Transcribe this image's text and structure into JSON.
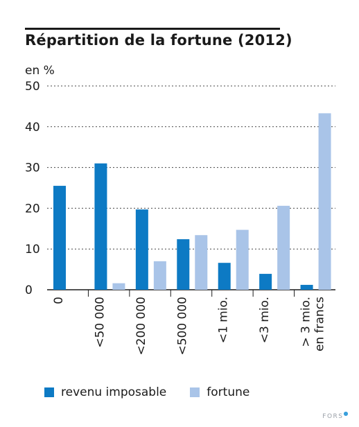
{
  "title": "Répartition de la fortune (2012)",
  "unit_label": "en %",
  "source_logo": "FORS",
  "colors": {
    "revenu": "#0d7ac4",
    "fortune": "#a9c4e8",
    "axis": "#1a1a1a"
  },
  "chart_data": {
    "type": "bar",
    "title": "Répartition de la fortune (2012)",
    "ylabel": "en %",
    "xlabel": "",
    "ylim": [
      0,
      50
    ],
    "yticks": [
      0,
      10,
      20,
      30,
      40,
      50
    ],
    "grid": true,
    "legend_position": "bottom",
    "categories": [
      [
        "0"
      ],
      [
        "<50 000"
      ],
      [
        "<200 000"
      ],
      [
        "<500 000"
      ],
      [
        "<1 mio."
      ],
      [
        "<3 mio."
      ],
      [
        "> 3 mio.",
        "en francs"
      ]
    ],
    "series": [
      {
        "name": "revenu imposable",
        "values": [
          25.5,
          31,
          19.7,
          12.4,
          6.6,
          3.9,
          1.2
        ]
      },
      {
        "name": "fortune",
        "values": [
          null,
          1.6,
          7.0,
          13.4,
          14.7,
          20.6,
          43.3
        ]
      }
    ]
  }
}
